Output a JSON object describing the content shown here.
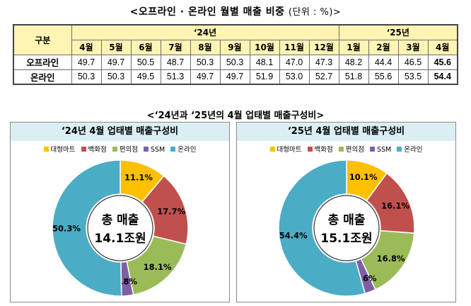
{
  "table_title": "<오프라인 · 온라인 월별 매출 비중",
  "table_unit": "(단위 : %)>",
  "table": {
    "category_header": "구분",
    "year_2024": "‘24년",
    "year_2025": "‘25년",
    "months": [
      "4월",
      "5월",
      "6월",
      "7월",
      "8월",
      "9월",
      "10월",
      "11월",
      "12월",
      "1월",
      "2월",
      "3월",
      "4월"
    ],
    "rows": [
      {
        "label": "오프라인",
        "values": [
          "49.7",
          "49.7",
          "50.5",
          "48.7",
          "50.3",
          "50.3",
          "48.1",
          "47.0",
          "47.3",
          "48.2",
          "44.4",
          "46.5",
          "45.6"
        ]
      },
      {
        "label": "온라인",
        "values": [
          "50.3",
          "50.3",
          "49.5",
          "51.3",
          "49.7",
          "49.7",
          "51.9",
          "53.0",
          "52.7",
          "51.8",
          "55.6",
          "53.5",
          "54.4"
        ]
      }
    ]
  },
  "charts_title": "<‘24년과 ‘25년의 4월 업태별 매출구성비>",
  "legend": [
    {
      "label": "대형마트",
      "color": "#ffc000"
    },
    {
      "label": "백화점",
      "color": "#c0504d"
    },
    {
      "label": "편의점",
      "color": "#9bbb59"
    },
    {
      "label": "SSM",
      "color": "#7d5fa6"
    },
    {
      "label": "온라인",
      "color": "#4bacc6"
    }
  ],
  "chart_data": [
    {
      "type": "pie",
      "title": "‘24년 4월 업태별 매출구성비",
      "center_label_1": "총 매출",
      "center_label_2": "14.1조원",
      "categories": [
        "대형마트",
        "백화점",
        "편의점",
        "SSM",
        "온라인"
      ],
      "values": [
        11.1,
        17.7,
        18.1,
        2.8,
        50.3
      ],
      "labels": [
        "11.1%",
        "17.7%",
        "18.1%",
        "2.8%",
        "50.3%"
      ]
    },
    {
      "type": "pie",
      "title": "‘25년 4월 업태별 매출구성비",
      "center_label_1": "총 매출",
      "center_label_2": "15.1조원",
      "categories": [
        "대형마트",
        "백화점",
        "편의점",
        "SSM",
        "온라인"
      ],
      "values": [
        10.1,
        16.1,
        16.8,
        2.6,
        54.4
      ],
      "labels": [
        "10.1%",
        "16.1%",
        "16.8%",
        "2.6%",
        "54.4%"
      ]
    }
  ]
}
